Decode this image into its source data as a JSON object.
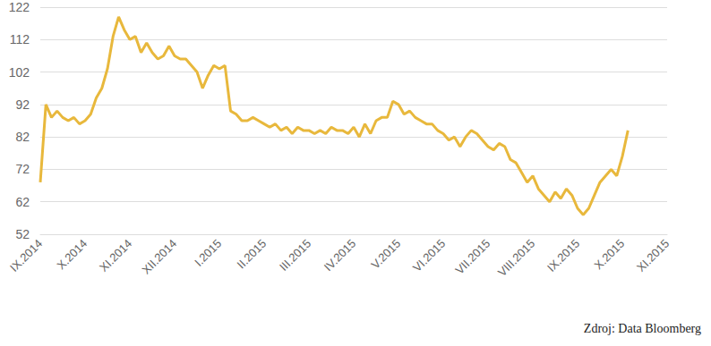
{
  "chart_data": {
    "type": "line",
    "source": "Zdroj: Data Bloomberg",
    "categories": [
      "IX.2014",
      null,
      null,
      null,
      null,
      null,
      null,
      null,
      "X.2014",
      null,
      null,
      null,
      null,
      null,
      null,
      null,
      "XI.2014",
      null,
      null,
      null,
      null,
      null,
      null,
      null,
      "XII.2014",
      null,
      null,
      null,
      null,
      null,
      null,
      null,
      "I.2015",
      null,
      null,
      null,
      null,
      null,
      null,
      null,
      "II.2015",
      null,
      null,
      null,
      null,
      null,
      null,
      null,
      "III.2015",
      null,
      null,
      null,
      null,
      null,
      null,
      null,
      "IV.2015",
      null,
      null,
      null,
      null,
      null,
      null,
      null,
      "V.2015",
      null,
      null,
      null,
      null,
      null,
      null,
      null,
      "VI.2015",
      null,
      null,
      null,
      null,
      null,
      null,
      null,
      "VII.2015",
      null,
      null,
      null,
      null,
      null,
      null,
      null,
      "VIII.2015",
      null,
      null,
      null,
      null,
      null,
      null,
      null,
      "IX.2015",
      null,
      null,
      null,
      null,
      null,
      null,
      null,
      "X.2015",
      null,
      null,
      null,
      null,
      null,
      null,
      null,
      "XI.2015"
    ],
    "values": [
      68,
      92,
      88,
      90,
      88,
      87,
      88,
      86,
      87,
      89,
      94,
      97,
      103,
      113,
      119,
      115,
      112,
      113,
      108,
      111,
      108,
      106,
      107,
      110,
      107,
      106,
      106,
      104,
      102,
      97,
      101,
      104,
      103,
      104,
      90,
      89,
      87,
      87,
      88,
      87,
      86,
      85,
      86,
      84,
      85,
      83,
      85,
      84,
      84,
      83,
      84,
      83,
      85,
      84,
      84,
      83,
      85,
      82,
      86,
      83,
      87,
      88,
      88,
      93,
      92,
      89,
      90,
      88,
      87,
      86,
      86,
      84,
      83,
      81,
      82,
      79,
      82,
      84,
      83,
      81,
      79,
      78,
      80,
      79,
      75,
      74,
      71,
      68,
      70,
      66,
      64,
      62,
      65,
      63,
      66,
      64,
      60,
      58,
      60,
      64,
      68,
      70,
      72,
      70,
      76,
      84,
      null,
      null,
      null,
      null,
      null,
      null,
      null
    ],
    "color": "#e8b83c",
    "ylim": [
      52,
      122
    ],
    "yticks": [
      52,
      62,
      72,
      82,
      92,
      102,
      112,
      122
    ],
    "grid": true
  }
}
